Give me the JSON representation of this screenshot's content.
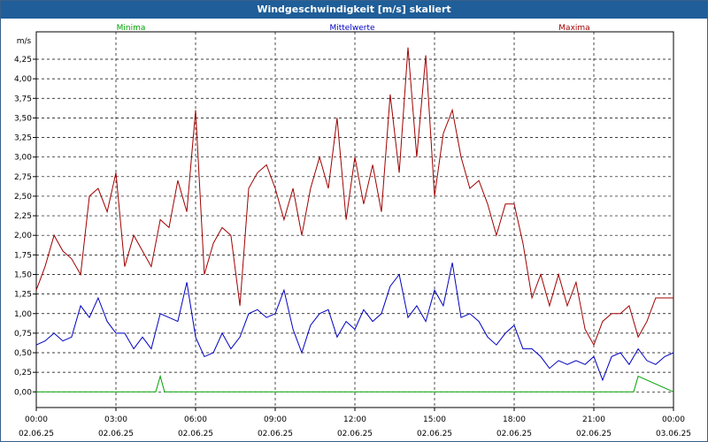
{
  "window": {
    "title": "Windgeschwindigkeit [m/s] skaliert"
  },
  "chart_data": {
    "type": "line",
    "title": "Windgeschwindigkeit [m/s] skaliert",
    "ylabel": "m/s",
    "xlabel": "",
    "ylim": [
      -0.2,
      4.6
    ],
    "xlim": [
      0,
      24
    ],
    "grid": true,
    "legend_position": "top",
    "y_ticks": [
      "0,00",
      "0,25",
      "0,50",
      "0,75",
      "1,00",
      "1,25",
      "1,50",
      "1,75",
      "2,00",
      "2,25",
      "2,50",
      "2,75",
      "3,00",
      "3,25",
      "3,50",
      "3,75",
      "4,00",
      "4,25"
    ],
    "x_ticks": [
      {
        "time": "00:00",
        "date": "02.06.25"
      },
      {
        "time": "03:00",
        "date": "02.06.25"
      },
      {
        "time": "06:00",
        "date": "02.06.25"
      },
      {
        "time": "09:00",
        "date": "02.06.25"
      },
      {
        "time": "12:00",
        "date": "02.06.25"
      },
      {
        "time": "15:00",
        "date": "02.06.25"
      },
      {
        "time": "18:00",
        "date": "02.06.25"
      },
      {
        "time": "21:00",
        "date": "02.06.25"
      },
      {
        "time": "00:00",
        "date": "03.06.25"
      }
    ],
    "series": [
      {
        "name": "Minima",
        "color": "#00a000",
        "x": [
          0,
          4.5,
          4.67,
          4.83,
          22.3,
          22.5,
          22.67,
          24
        ],
        "values": [
          0,
          0,
          0.2,
          0,
          0,
          0,
          0.2,
          0
        ]
      },
      {
        "name": "Mittelwerte",
        "color": "#0000c0",
        "x": [
          0,
          0.33,
          0.67,
          1,
          1.33,
          1.67,
          2,
          2.33,
          2.67,
          3,
          3.33,
          3.67,
          4,
          4.33,
          4.67,
          5,
          5.33,
          5.67,
          6,
          6.33,
          6.67,
          7,
          7.33,
          7.67,
          8,
          8.33,
          8.67,
          9,
          9.33,
          9.67,
          10,
          10.33,
          10.67,
          11,
          11.33,
          11.67,
          12,
          12.33,
          12.67,
          13,
          13.33,
          13.67,
          14,
          14.33,
          14.67,
          15,
          15.33,
          15.67,
          16,
          16.33,
          16.67,
          17,
          17.33,
          17.67,
          18,
          18.33,
          18.67,
          19,
          19.33,
          19.67,
          20,
          20.33,
          20.67,
          21,
          21.33,
          21.67,
          22,
          22.33,
          22.67,
          23,
          23.33,
          23.67,
          24
        ],
        "values": [
          0.6,
          0.65,
          0.75,
          0.65,
          0.7,
          1.1,
          0.95,
          1.2,
          0.9,
          0.75,
          0.75,
          0.55,
          0.7,
          0.55,
          1.0,
          0.95,
          0.9,
          1.4,
          0.7,
          0.45,
          0.5,
          0.75,
          0.55,
          0.7,
          1.0,
          1.05,
          0.95,
          1.0,
          1.3,
          0.8,
          0.5,
          0.85,
          1.0,
          1.05,
          0.7,
          0.9,
          0.8,
          1.05,
          0.9,
          1.0,
          1.35,
          1.5,
          0.95,
          1.1,
          0.9,
          1.3,
          1.1,
          1.65,
          0.95,
          1.0,
          0.9,
          0.7,
          0.6,
          0.75,
          0.85,
          0.55,
          0.55,
          0.45,
          0.3,
          0.4,
          0.35,
          0.4,
          0.35,
          0.45,
          0.15,
          0.45,
          0.5,
          0.35,
          0.55,
          0.4,
          0.35,
          0.45,
          0.5
        ]
      },
      {
        "name": "Maxima",
        "color": "#a00000",
        "x": [
          0,
          0.33,
          0.67,
          1,
          1.33,
          1.67,
          2,
          2.33,
          2.67,
          3,
          3.33,
          3.67,
          4,
          4.33,
          4.67,
          5,
          5.33,
          5.67,
          6,
          6.33,
          6.67,
          7,
          7.33,
          7.67,
          8,
          8.33,
          8.67,
          9,
          9.33,
          9.67,
          10,
          10.33,
          10.67,
          11,
          11.33,
          11.67,
          12,
          12.33,
          12.67,
          13,
          13.33,
          13.67,
          14,
          14.33,
          14.67,
          15,
          15.33,
          15.67,
          16,
          16.33,
          16.67,
          17,
          17.33,
          17.67,
          18,
          18.33,
          18.67,
          19,
          19.33,
          19.67,
          20,
          20.33,
          20.67,
          21,
          21.33,
          21.67,
          22,
          22.33,
          22.67,
          23,
          23.33,
          23.67,
          24
        ],
        "values": [
          1.3,
          1.6,
          2.0,
          1.8,
          1.7,
          1.5,
          2.5,
          2.6,
          2.3,
          2.8,
          1.6,
          2.0,
          1.8,
          1.6,
          2.2,
          2.1,
          2.7,
          2.3,
          3.6,
          1.5,
          1.9,
          2.1,
          2.0,
          1.1,
          2.6,
          2.8,
          2.9,
          2.6,
          2.2,
          2.6,
          2.0,
          2.6,
          3.0,
          2.6,
          3.5,
          2.2,
          3.0,
          2.4,
          2.9,
          2.3,
          3.8,
          2.8,
          4.4,
          3.0,
          4.3,
          2.5,
          3.3,
          3.6,
          3.0,
          2.6,
          2.7,
          2.4,
          2.0,
          2.4,
          2.4,
          1.9,
          1.2,
          1.5,
          1.1,
          1.5,
          1.1,
          1.4,
          0.8,
          0.6,
          0.9,
          1.0,
          1.0,
          1.1,
          0.7,
          0.9,
          1.2,
          1.2,
          1.2
        ]
      }
    ]
  }
}
